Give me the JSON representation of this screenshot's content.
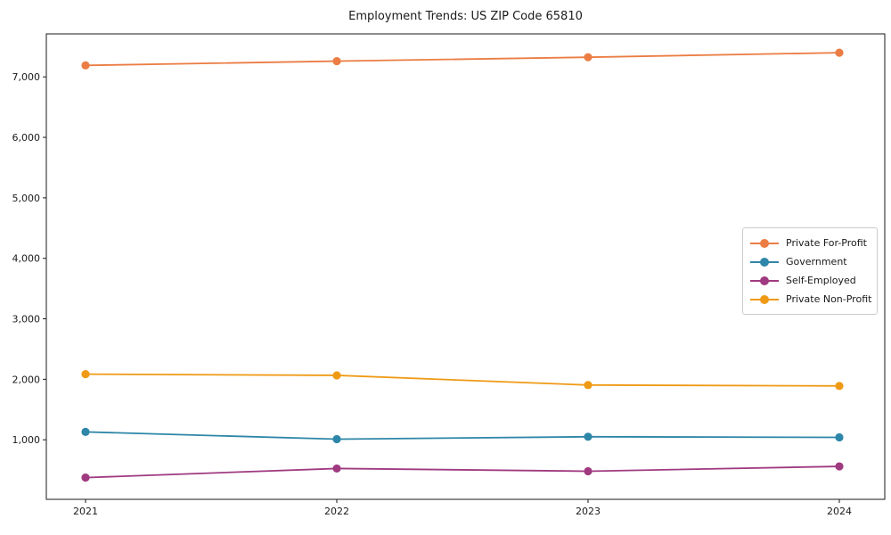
{
  "title": "Employment Trends: US ZIP Code 65810",
  "chart_data": {
    "type": "line",
    "title": "Employment Trends: US ZIP Code 65810",
    "xlabel": "",
    "ylabel": "",
    "x": [
      2021,
      2022,
      2023,
      2024
    ],
    "xtick_labels": [
      "2021",
      "2022",
      "2023",
      "2024"
    ],
    "yticks": [
      1000,
      2000,
      3000,
      4000,
      5000,
      6000,
      7000
    ],
    "ytick_labels": [
      "1,000",
      "2,000",
      "3,000",
      "4,000",
      "5,000",
      "6,000",
      "7,000"
    ],
    "ylim": [
      16,
      7710
    ],
    "xlim": [
      2020.85,
      2024.15
    ],
    "grid": false,
    "legend_position": "center-right",
    "series": [
      {
        "name": "Private For-Profit",
        "color": "#EB7D44",
        "values": [
          7190,
          7260,
          7325,
          7400
        ]
      },
      {
        "name": "Government",
        "color": "#2E86A8",
        "values": [
          1130,
          1010,
          1050,
          1040
        ]
      },
      {
        "name": "Self-Employed",
        "color": "#A03A80",
        "values": [
          375,
          525,
          480,
          560
        ]
      },
      {
        "name": "Private Non-Profit",
        "color": "#EF9A15",
        "values": [
          2085,
          2065,
          1905,
          1890
        ]
      }
    ]
  }
}
